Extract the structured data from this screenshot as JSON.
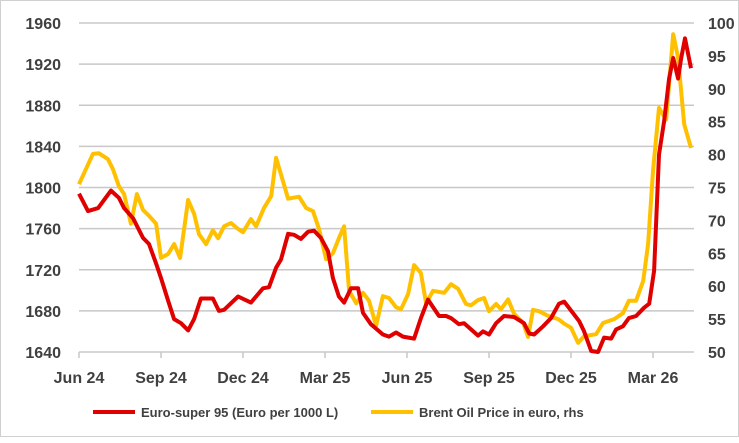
{
  "chart_data": {
    "type": "line",
    "title": "",
    "x_unit": "months since Jun 24",
    "xlim": [
      0,
      22.5
    ],
    "x_ticks": [
      {
        "x": 0,
        "label": "Jun 24"
      },
      {
        "x": 3,
        "label": "Sep 24"
      },
      {
        "x": 6,
        "label": "Dec 24"
      },
      {
        "x": 9,
        "label": "Mar 25"
      },
      {
        "x": 12,
        "label": "Jun 25"
      },
      {
        "x": 15,
        "label": "Sep 25"
      },
      {
        "x": 18,
        "label": "Dec 25"
      },
      {
        "x": 21,
        "label": "Mar 26"
      }
    ],
    "y_left": {
      "min": 1640,
      "max": 1960,
      "step": 40,
      "ticks": [
        "1640",
        "1680",
        "1720",
        "1760",
        "1800",
        "1840",
        "1880",
        "1920",
        "1960"
      ]
    },
    "y_right": {
      "min": 50,
      "max": 100,
      "step": 5,
      "ticks": [
        "50",
        "55",
        "60",
        "65",
        "70",
        "75",
        "80",
        "85",
        "90",
        "95",
        "100"
      ]
    },
    "grid": true,
    "legend_position": "bottom",
    "series": [
      {
        "name": "Euro-super 95 (Euro per 1000 L)",
        "axis": "left",
        "color": "#e00000",
        "points": [
          [
            0,
            1794
          ],
          [
            0.33,
            1777
          ],
          [
            0.7,
            1780
          ],
          [
            1.17,
            1797
          ],
          [
            1.46,
            1790
          ],
          [
            1.65,
            1780
          ],
          [
            1.98,
            1770
          ],
          [
            2.34,
            1751
          ],
          [
            2.56,
            1745
          ],
          [
            2.82,
            1726
          ],
          [
            3.0,
            1712
          ],
          [
            3.26,
            1690
          ],
          [
            3.48,
            1672
          ],
          [
            3.73,
            1668
          ],
          [
            3.99,
            1661
          ],
          [
            4.21,
            1672
          ],
          [
            4.46,
            1692
          ],
          [
            4.9,
            1692
          ],
          [
            5.12,
            1680
          ],
          [
            5.31,
            1681
          ],
          [
            5.82,
            1694
          ],
          [
            6.29,
            1688
          ],
          [
            6.73,
            1702
          ],
          [
            6.95,
            1703
          ],
          [
            7.21,
            1722
          ],
          [
            7.39,
            1730
          ],
          [
            7.65,
            1755
          ],
          [
            7.87,
            1754
          ],
          [
            8.12,
            1750
          ],
          [
            8.38,
            1757
          ],
          [
            8.6,
            1758
          ],
          [
            8.85,
            1751
          ],
          [
            9.11,
            1738
          ],
          [
            9.29,
            1712
          ],
          [
            9.51,
            1694
          ],
          [
            9.7,
            1688
          ],
          [
            9.95,
            1702
          ],
          [
            10.21,
            1702
          ],
          [
            10.39,
            1678
          ],
          [
            10.68,
            1667
          ],
          [
            11.12,
            1657
          ],
          [
            11.34,
            1655
          ],
          [
            11.6,
            1659
          ],
          [
            11.85,
            1655
          ],
          [
            12.26,
            1653
          ],
          [
            12.51,
            1673
          ],
          [
            12.77,
            1691
          ],
          [
            13.17,
            1675
          ],
          [
            13.43,
            1675
          ],
          [
            13.61,
            1673
          ],
          [
            13.9,
            1667
          ],
          [
            14.09,
            1668
          ],
          [
            14.6,
            1656
          ],
          [
            14.78,
            1660
          ],
          [
            15.0,
            1657
          ],
          [
            15.26,
            1668
          ],
          [
            15.55,
            1675
          ],
          [
            15.92,
            1674
          ],
          [
            16.28,
            1668
          ],
          [
            16.47,
            1658
          ],
          [
            16.65,
            1657
          ],
          [
            16.98,
            1665
          ],
          [
            17.27,
            1673
          ],
          [
            17.56,
            1687
          ],
          [
            17.75,
            1689
          ],
          [
            18.3,
            1670
          ],
          [
            18.48,
            1660
          ],
          [
            18.74,
            1641
          ],
          [
            18.99,
            1640
          ],
          [
            19.21,
            1654
          ],
          [
            19.47,
            1653
          ],
          [
            19.65,
            1662
          ],
          [
            19.9,
            1665
          ],
          [
            20.12,
            1673
          ],
          [
            20.38,
            1675
          ],
          [
            20.67,
            1683
          ],
          [
            20.86,
            1687
          ],
          [
            21.04,
            1719
          ],
          [
            21.22,
            1832
          ],
          [
            21.41,
            1865
          ],
          [
            21.59,
            1906
          ],
          [
            21.74,
            1926
          ],
          [
            21.92,
            1906
          ],
          [
            22.03,
            1926
          ],
          [
            22.17,
            1945
          ],
          [
            22.39,
            1916
          ]
        ]
      },
      {
        "name": "Brent Oil Price in euro, rhs",
        "axis": "right",
        "color": "#ffc000",
        "points": [
          [
            0,
            75.5
          ],
          [
            0.51,
            80.1
          ],
          [
            0.73,
            80.2
          ],
          [
            1.06,
            79.3
          ],
          [
            1.24,
            77.8
          ],
          [
            1.46,
            75.2
          ],
          [
            1.65,
            74.0
          ],
          [
            1.9,
            69.5
          ],
          [
            2.12,
            74.0
          ],
          [
            2.34,
            71.6
          ],
          [
            2.56,
            70.7
          ],
          [
            2.82,
            69.5
          ],
          [
            3.0,
            64.3
          ],
          [
            3.26,
            64.9
          ],
          [
            3.48,
            66.4
          ],
          [
            3.7,
            64.3
          ],
          [
            3.99,
            73.1
          ],
          [
            4.21,
            71.0
          ],
          [
            4.39,
            67.9
          ],
          [
            4.65,
            66.4
          ],
          [
            4.9,
            68.5
          ],
          [
            5.09,
            67.3
          ],
          [
            5.31,
            69.1
          ],
          [
            5.56,
            69.6
          ],
          [
            5.82,
            68.7
          ],
          [
            6.0,
            68.2
          ],
          [
            6.29,
            70.2
          ],
          [
            6.48,
            69.1
          ],
          [
            6.77,
            71.9
          ],
          [
            7.03,
            73.7
          ],
          [
            7.21,
            79.5
          ],
          [
            7.46,
            76.0
          ],
          [
            7.65,
            73.3
          ],
          [
            8.05,
            73.6
          ],
          [
            8.31,
            71.9
          ],
          [
            8.56,
            71.4
          ],
          [
            8.78,
            68.7
          ],
          [
            9.04,
            64.1
          ],
          [
            9.29,
            65.0
          ],
          [
            9.51,
            67.3
          ],
          [
            9.7,
            69.1
          ],
          [
            9.88,
            59.3
          ],
          [
            10.14,
            57.4
          ],
          [
            10.39,
            59.0
          ],
          [
            10.61,
            57.8
          ],
          [
            10.87,
            54.0
          ],
          [
            11.12,
            58.5
          ],
          [
            11.34,
            58.2
          ],
          [
            11.6,
            56.8
          ],
          [
            11.78,
            56.5
          ],
          [
            12.04,
            58.8
          ],
          [
            12.26,
            63.2
          ],
          [
            12.51,
            62.0
          ],
          [
            12.7,
            57.4
          ],
          [
            12.95,
            59.3
          ],
          [
            13.36,
            59.0
          ],
          [
            13.61,
            60.3
          ],
          [
            13.87,
            59.6
          ],
          [
            14.16,
            57.3
          ],
          [
            14.34,
            57.1
          ],
          [
            14.6,
            57.9
          ],
          [
            14.82,
            58.2
          ],
          [
            15.0,
            56.2
          ],
          [
            15.26,
            57.3
          ],
          [
            15.44,
            56.5
          ],
          [
            15.7,
            58.0
          ],
          [
            15.92,
            55.8
          ],
          [
            16.25,
            54.4
          ],
          [
            16.43,
            52.3
          ],
          [
            16.61,
            56.4
          ],
          [
            16.83,
            56.2
          ],
          [
            17.16,
            55.5
          ],
          [
            17.53,
            55.0
          ],
          [
            17.75,
            54.3
          ],
          [
            18.0,
            53.7
          ],
          [
            18.26,
            51.4
          ],
          [
            18.48,
            52.4
          ],
          [
            18.92,
            52.7
          ],
          [
            19.17,
            54.4
          ],
          [
            19.58,
            55.0
          ],
          [
            19.9,
            55.9
          ],
          [
            20.12,
            57.8
          ],
          [
            20.38,
            57.8
          ],
          [
            20.64,
            60.8
          ],
          [
            20.82,
            66.4
          ],
          [
            21.0,
            77.5
          ],
          [
            21.22,
            87.1
          ],
          [
            21.48,
            85.3
          ],
          [
            21.74,
            98.3
          ],
          [
            21.92,
            94.7
          ],
          [
            22.14,
            84.6
          ],
          [
            22.39,
            81.0
          ]
        ]
      }
    ]
  }
}
